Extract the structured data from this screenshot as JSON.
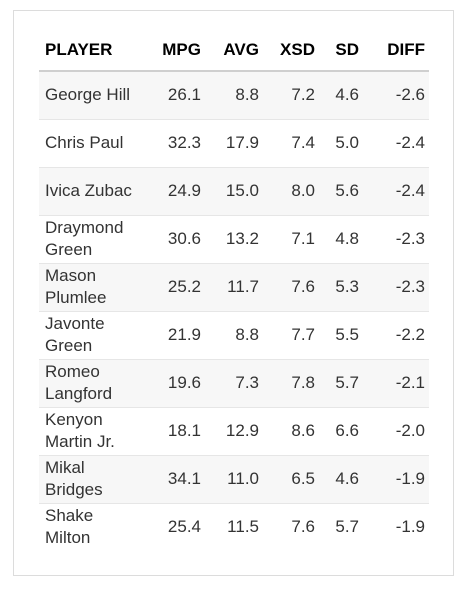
{
  "table": {
    "headers": [
      "PLAYER",
      "MPG",
      "AVG",
      "XSD",
      "SD",
      "DIFF"
    ],
    "rows": [
      {
        "player": "George Hill",
        "mpg": "26.1",
        "avg": "8.8",
        "xsd": "7.2",
        "sd": "4.6",
        "diff": "-2.6"
      },
      {
        "player": "Chris Paul",
        "mpg": "32.3",
        "avg": "17.9",
        "xsd": "7.4",
        "sd": "5.0",
        "diff": "-2.4"
      },
      {
        "player": "Ivica Zubac",
        "mpg": "24.9",
        "avg": "15.0",
        "xsd": "8.0",
        "sd": "5.6",
        "diff": "-2.4"
      },
      {
        "player": "Draymond Green",
        "mpg": "30.6",
        "avg": "13.2",
        "xsd": "7.1",
        "sd": "4.8",
        "diff": "-2.3"
      },
      {
        "player": "Mason Plumlee",
        "mpg": "25.2",
        "avg": "11.7",
        "xsd": "7.6",
        "sd": "5.3",
        "diff": "-2.3"
      },
      {
        "player": "Javonte Green",
        "mpg": "21.9",
        "avg": "8.8",
        "xsd": "7.7",
        "sd": "5.5",
        "diff": "-2.2"
      },
      {
        "player": "Romeo Langford",
        "mpg": "19.6",
        "avg": "7.3",
        "xsd": "7.8",
        "sd": "5.7",
        "diff": "-2.1"
      },
      {
        "player": "Kenyon Martin Jr.",
        "mpg": "18.1",
        "avg": "12.9",
        "xsd": "8.6",
        "sd": "6.6",
        "diff": "-2.0"
      },
      {
        "player": "Mikal Bridges",
        "mpg": "34.1",
        "avg": "11.0",
        "xsd": "6.5",
        "sd": "4.6",
        "diff": "-1.9"
      },
      {
        "player": "Shake Milton",
        "mpg": "25.4",
        "avg": "11.5",
        "xsd": "7.6",
        "sd": "5.7",
        "diff": "-1.9"
      }
    ]
  }
}
